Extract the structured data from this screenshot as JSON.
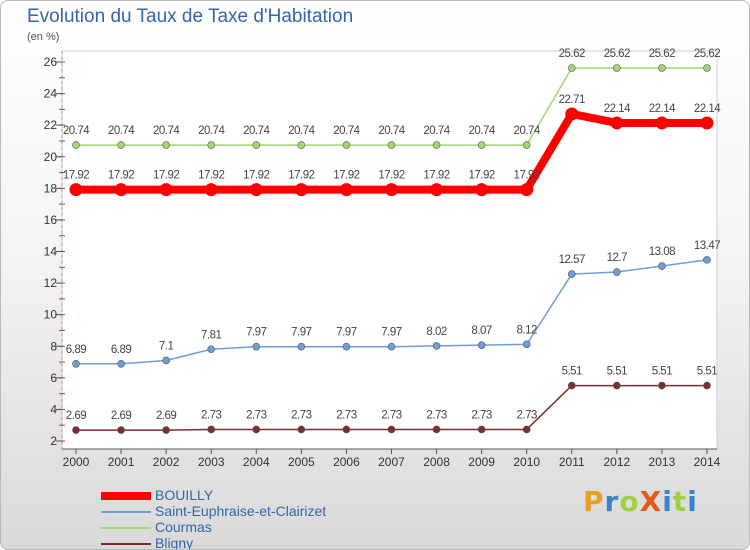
{
  "title": "Evolution du Taux de Taxe d'Habitation",
  "subtitle": "(en %)",
  "logo": {
    "text": "ProXiti",
    "colors": [
      "#e8a020",
      "#3a84c8",
      "#9fd040",
      "#e05a1a",
      "#3a84c8",
      "#9fd040",
      "#3a84c8"
    ]
  },
  "chart_data": {
    "type": "line",
    "x": [
      "2000",
      "2001",
      "2002",
      "2003",
      "2004",
      "2005",
      "2006",
      "2007",
      "2008",
      "2009",
      "2010",
      "2011",
      "2012",
      "2013",
      "2014"
    ],
    "ylim": [
      2,
      26
    ],
    "yticks": [
      "2",
      "4",
      "6",
      "8",
      "10",
      "12",
      "14",
      "16",
      "18",
      "20",
      "22",
      "24",
      "26"
    ],
    "grid": false,
    "legend_position": "bottom-left",
    "series": [
      {
        "name": "BOUILLY",
        "color": "#ff0000",
        "values": [
          17.92,
          17.92,
          17.92,
          17.92,
          17.92,
          17.92,
          17.92,
          17.92,
          17.92,
          17.92,
          17.92,
          22.71,
          22.14,
          22.14,
          22.14
        ],
        "labels": [
          "17.92",
          "17.92",
          "17.92",
          "17.92",
          "17.92",
          "17.92",
          "17.92",
          "17.92",
          "17.92",
          "17.92",
          "17.92",
          "22.71",
          "22.14",
          "22.14",
          "22.14"
        ]
      },
      {
        "name": "Saint-Euphraise-et-Clairizet",
        "color": "#6e9fd4",
        "values": [
          6.89,
          6.89,
          7.1,
          7.81,
          7.97,
          7.97,
          7.97,
          7.97,
          8.02,
          8.07,
          8.12,
          12.57,
          12.7,
          13.08,
          13.47
        ],
        "labels": [
          "6.89",
          "6.89",
          "7.1",
          "7.81",
          "7.97",
          "7.97",
          "7.97",
          "7.97",
          "8.02",
          "8.07",
          "8.12",
          "12.57",
          "12.7",
          "13.08",
          "13.47"
        ]
      },
      {
        "name": "Courmas",
        "color": "#9ed870",
        "values": [
          20.74,
          20.74,
          20.74,
          20.74,
          20.74,
          20.74,
          20.74,
          20.74,
          20.74,
          20.74,
          20.74,
          25.62,
          25.62,
          25.62,
          25.62
        ],
        "labels": [
          "20.74",
          "20.74",
          "20.74",
          "20.74",
          "20.74",
          "20.74",
          "20.74",
          "20.74",
          "20.74",
          "20.74",
          "20.74",
          "25.62",
          "25.62",
          "25.62",
          "25.62"
        ]
      },
      {
        "name": "Bligny",
        "color": "#7a2e2e",
        "values": [
          2.69,
          2.69,
          2.69,
          2.73,
          2.73,
          2.73,
          2.73,
          2.73,
          2.73,
          2.73,
          2.73,
          5.51,
          5.51,
          5.51,
          5.51
        ],
        "labels": [
          "2.69",
          "2.69",
          "2.69",
          "2.73",
          "2.73",
          "2.73",
          "2.73",
          "2.73",
          "2.73",
          "2.73",
          "2.73",
          "5.51",
          "5.51",
          "5.51",
          "5.51"
        ]
      }
    ]
  }
}
